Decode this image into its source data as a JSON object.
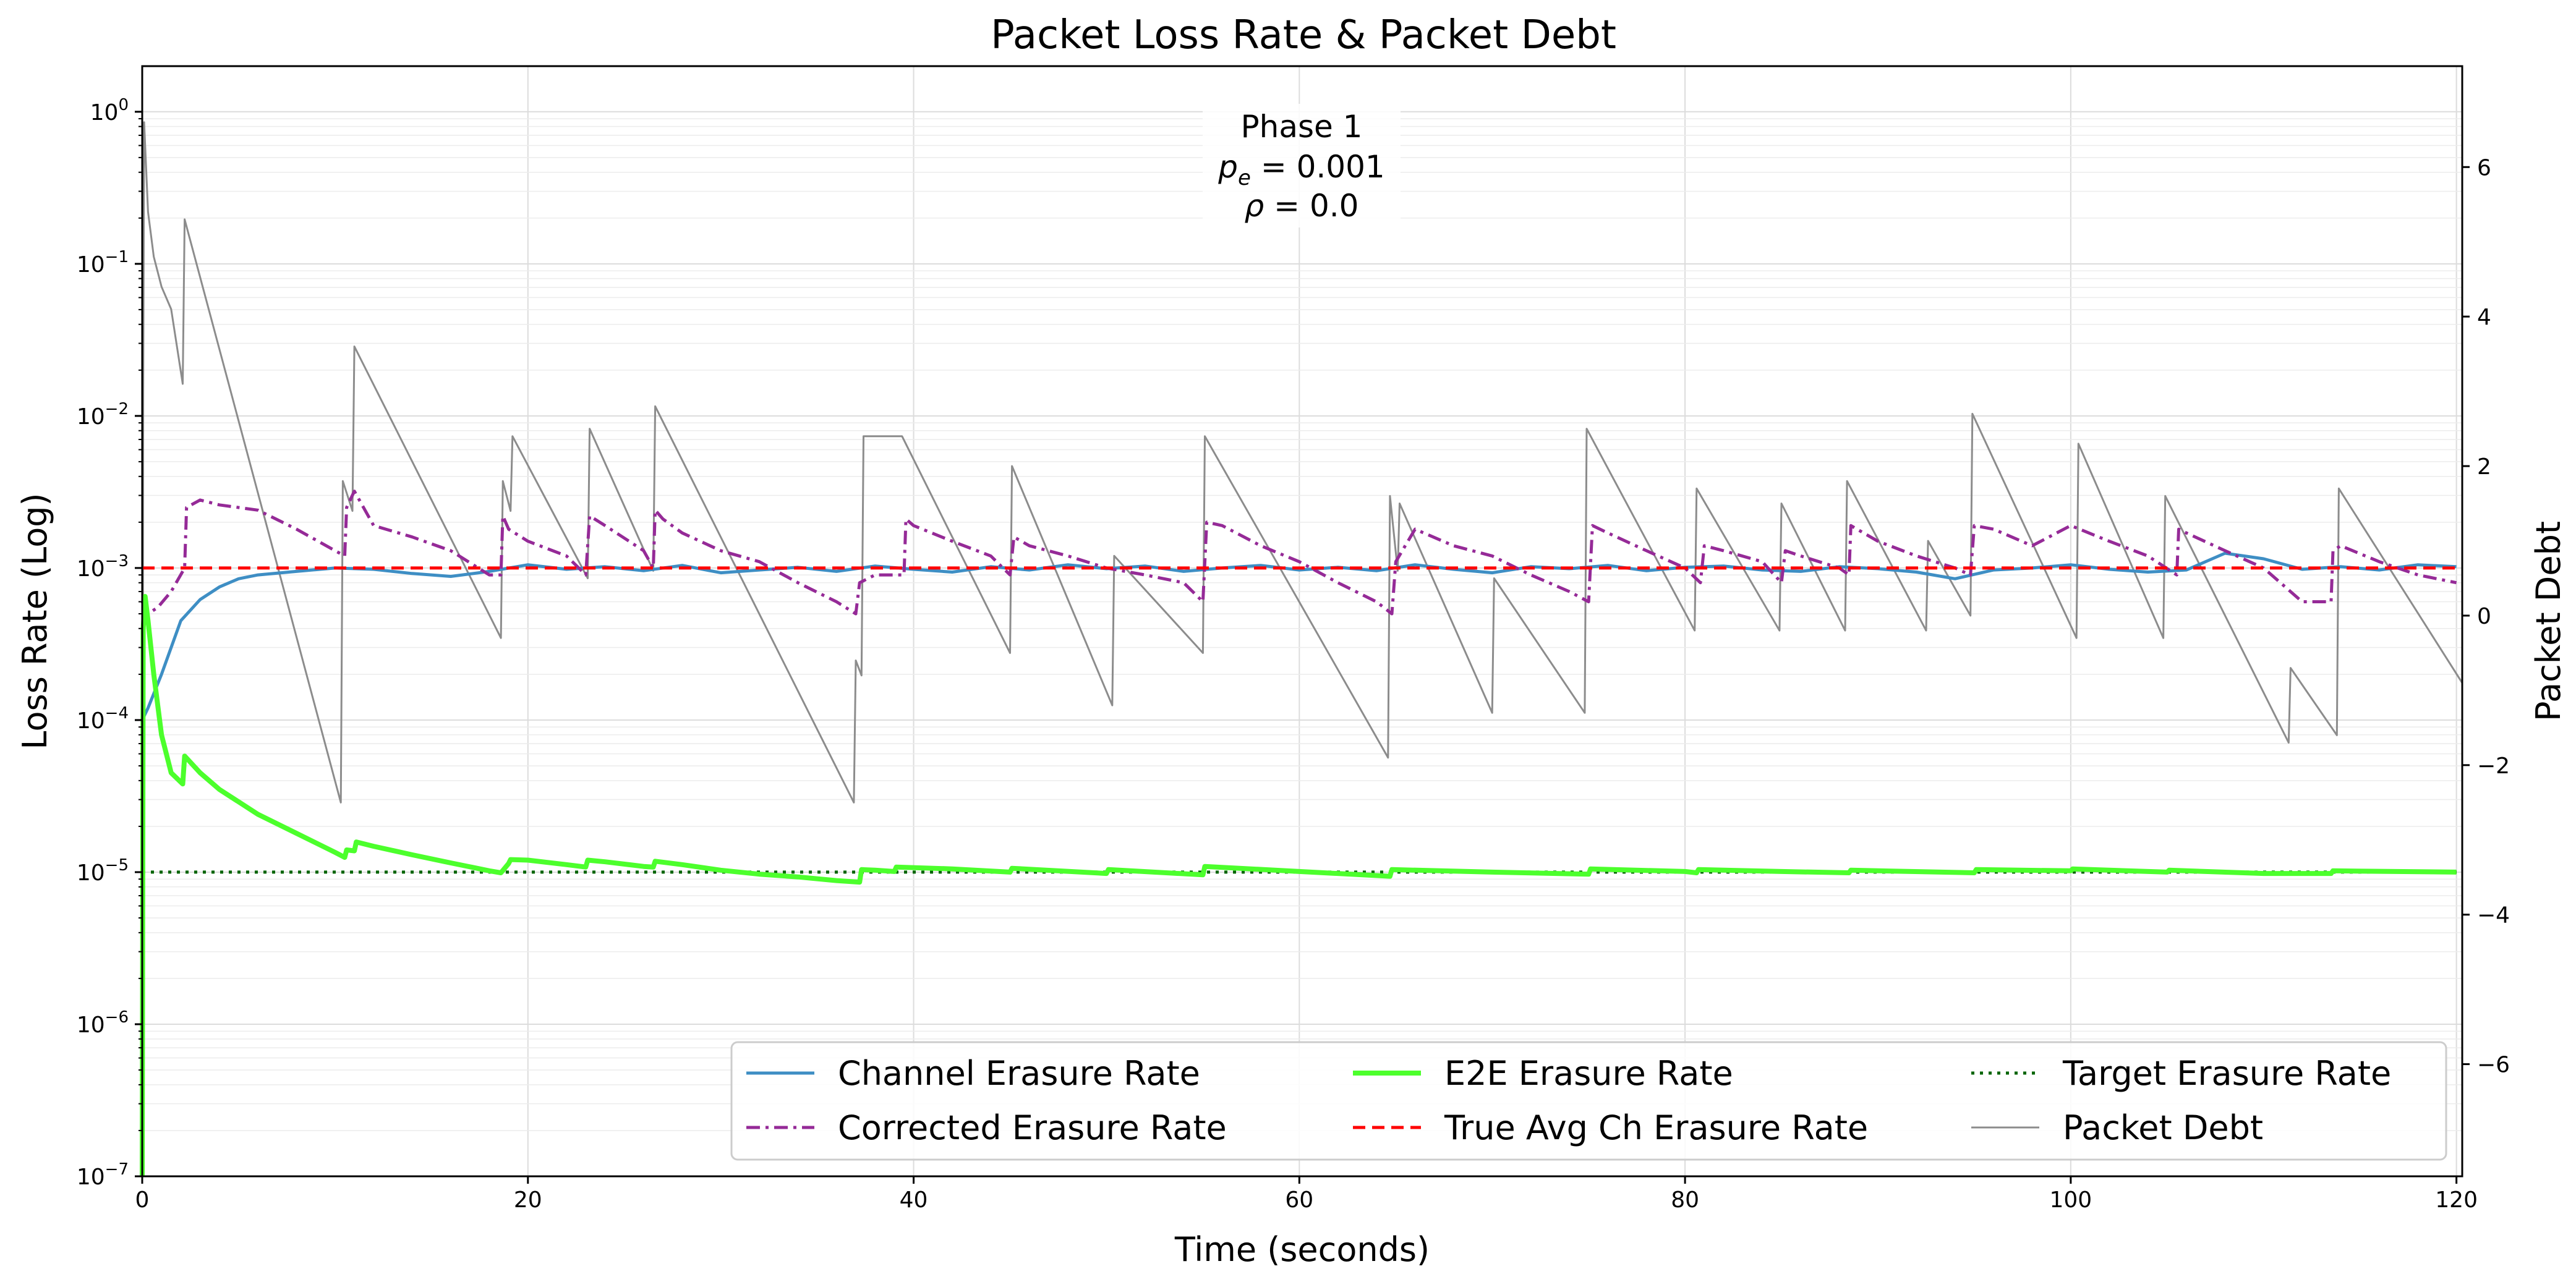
{
  "chart_data": {
    "type": "line",
    "title": "Packet Loss Rate & Packet Debt",
    "xlabel": "Time (seconds)",
    "ylabel_left": "Loss Rate (Log)",
    "ylabel_right": "Packet Debt",
    "xlim": [
      0,
      120.3
    ],
    "ylim_left_log": [
      -7,
      0.3
    ],
    "ylim_right": [
      -7.5,
      7.35
    ],
    "y_left_scale": "log",
    "grid": true,
    "legend_position": "lower-right",
    "x_ticks": [
      0,
      20,
      40,
      60,
      80,
      100,
      120
    ],
    "y_left_tick_exponents": [
      -7,
      -6,
      -5,
      -4,
      -3,
      -2,
      -1,
      0
    ],
    "y_left_tick_base": "10",
    "y_right_ticks": [
      -6,
      -4,
      -2,
      0,
      2,
      4,
      6
    ],
    "annotation": {
      "line1": "Phase 1",
      "p_sym": "p",
      "p_sub": "e",
      "p_val": " = 0.001",
      "rho_sym": "ρ",
      "rho_val": " = 0.0"
    },
    "series": [
      {
        "name": "Channel Erasure Rate",
        "axis": "left",
        "color": "#3e8ec4",
        "style": "solid",
        "x": [
          0,
          0.3,
          1,
          2,
          3,
          4,
          5,
          6,
          8,
          10,
          12,
          14,
          16,
          18,
          20,
          22,
          24,
          26,
          28,
          30,
          32,
          34,
          36,
          38,
          40,
          42,
          44,
          46,
          48,
          50,
          52,
          54,
          56,
          58,
          60,
          62,
          64,
          66,
          68,
          70,
          72,
          74,
          76,
          78,
          80,
          82,
          84,
          86,
          88,
          90,
          92,
          94,
          96,
          98,
          100,
          102,
          104,
          106,
          108,
          110,
          112,
          114,
          116,
          118,
          120
        ],
        "y": [
          0.0001,
          0.00012,
          0.0002,
          0.00045,
          0.00062,
          0.00075,
          0.00085,
          0.0009,
          0.00095,
          0.001,
          0.00098,
          0.00092,
          0.00088,
          0.00095,
          0.00105,
          0.00098,
          0.00102,
          0.00096,
          0.00104,
          0.00093,
          0.00097,
          0.00101,
          0.00095,
          0.00103,
          0.00098,
          0.00094,
          0.00102,
          0.00097,
          0.00105,
          0.00099,
          0.00103,
          0.00095,
          0.001,
          0.00104,
          0.00097,
          0.00101,
          0.00096,
          0.00105,
          0.00098,
          0.00093,
          0.00102,
          0.00099,
          0.00104,
          0.00096,
          0.00101,
          0.00103,
          0.00097,
          0.00095,
          0.00102,
          0.00099,
          0.00094,
          0.00085,
          0.00097,
          0.001,
          0.00105,
          0.00098,
          0.00094,
          0.00097,
          0.00125,
          0.00115,
          0.00098,
          0.00102,
          0.00097,
          0.00105,
          0.00102
        ]
      },
      {
        "name": "Corrected Erasure Rate",
        "axis": "left",
        "color": "#952a97",
        "style": "dashdot",
        "x": [
          0,
          0.3,
          0.8,
          1.5,
          2.2,
          2.3,
          3,
          4,
          6,
          8,
          10,
          10.5,
          10.6,
          11,
          12,
          14,
          16,
          18,
          18.6,
          18.7,
          19,
          20,
          22,
          23,
          23.2,
          24,
          26,
          26.5,
          26.6,
          27,
          28,
          30,
          32,
          34,
          36,
          37,
          37.2,
          38,
          39.5,
          39.6,
          40,
          42,
          44,
          45,
          45.2,
          46,
          48,
          50,
          52,
          54,
          55,
          55.2,
          56,
          58,
          60,
          62,
          64,
          64.8,
          65,
          66,
          68,
          70,
          72,
          74,
          75,
          75.2,
          76,
          78,
          80,
          80.8,
          81,
          82,
          84,
          85,
          85.2,
          86,
          88,
          88.5,
          88.6,
          90,
          92,
          94,
          94.8,
          95,
          96,
          98,
          100,
          102,
          104,
          105.5,
          105.6,
          106,
          108,
          110,
          112,
          113.5,
          113.6,
          114,
          116,
          118,
          120
        ],
        "y": [
          0.0006,
          0.0005,
          0.00055,
          0.0007,
          0.001,
          0.0025,
          0.0028,
          0.0026,
          0.0024,
          0.0018,
          0.0013,
          0.0012,
          0.0025,
          0.0032,
          0.0019,
          0.0016,
          0.0013,
          0.0009,
          0.0009,
          0.0022,
          0.0018,
          0.0015,
          0.0012,
          0.0009,
          0.0022,
          0.0019,
          0.0013,
          0.001,
          0.0024,
          0.0021,
          0.0017,
          0.0013,
          0.0011,
          0.0008,
          0.0006,
          0.0005,
          0.0008,
          0.0009,
          0.0009,
          0.0021,
          0.0019,
          0.0015,
          0.0012,
          0.0009,
          0.0016,
          0.0014,
          0.0012,
          0.001,
          0.0009,
          0.0008,
          0.0006,
          0.002,
          0.0019,
          0.0014,
          0.0011,
          0.0008,
          0.0006,
          0.0005,
          0.0011,
          0.0018,
          0.0014,
          0.0012,
          0.0009,
          0.0007,
          0.0006,
          0.0019,
          0.0017,
          0.0013,
          0.001,
          0.0008,
          0.0014,
          0.0013,
          0.0011,
          0.0008,
          0.0013,
          0.0012,
          0.001,
          0.0009,
          0.0019,
          0.0015,
          0.0012,
          0.001,
          0.0009,
          0.0019,
          0.0018,
          0.0014,
          0.0019,
          0.0015,
          0.0012,
          0.0009,
          0.0018,
          0.0017,
          0.0013,
          0.001,
          0.0006,
          0.0006,
          0.0013,
          0.0014,
          0.0011,
          0.0009,
          0.0008
        ]
      },
      {
        "name": "E2E Erasure Rate",
        "axis": "left",
        "color": "#4cff2c",
        "style": "solid-thick",
        "x": [
          0,
          0.05,
          0.15,
          0.3,
          0.6,
          1,
          1.5,
          2.1,
          2.2,
          3,
          4,
          6,
          8,
          10,
          10.5,
          10.6,
          11,
          11.1,
          12,
          14,
          16,
          18,
          18.6,
          19,
          19.1,
          20,
          22,
          23,
          23.1,
          24,
          26,
          26.5,
          26.6,
          28,
          30,
          32,
          34,
          36,
          37.2,
          37.3,
          38,
          39,
          39.1,
          42,
          45,
          45.1,
          50,
          50.1,
          55,
          55.1,
          60,
          64.7,
          64.8,
          70,
          75,
          75.1,
          80,
          80.6,
          80.7,
          85,
          88.5,
          88.6,
          95,
          95.1,
          100,
          100.1,
          105,
          105.1,
          110,
          113.5,
          113.6,
          120
        ],
        "y": [
          1e-07,
          0.0004,
          0.00065,
          0.00045,
          0.0002,
          8e-05,
          4.5e-05,
          3.8e-05,
          5.8e-05,
          4.5e-05,
          3.5e-05,
          2.4e-05,
          1.8e-05,
          1.35e-05,
          1.25e-05,
          1.4e-05,
          1.38e-05,
          1.58e-05,
          1.48e-05,
          1.3e-05,
          1.15e-05,
          1.02e-05,
          9.9e-06,
          1.14e-05,
          1.21e-05,
          1.2e-05,
          1.12e-05,
          1.08e-05,
          1.2e-05,
          1.17e-05,
          1.09e-05,
          1.08e-05,
          1.18e-05,
          1.12e-05,
          1.03e-05,
          9.7e-06,
          9.3e-06,
          8.8e-06,
          8.6e-06,
          1.04e-05,
          1.03e-05,
          1.01e-05,
          1.08e-05,
          1.05e-05,
          1e-05,
          1.06e-05,
          9.8e-06,
          1.04e-05,
          9.6e-06,
          1.09e-05,
          1.01e-05,
          9.4e-06,
          1.04e-05,
          1e-05,
          9.7e-06,
          1.05e-05,
          1.01e-05,
          9.9e-06,
          1.04e-05,
          1.01e-05,
          9.9e-06,
          1.03e-05,
          9.9e-06,
          1.04e-05,
          1.02e-05,
          1.05e-05,
          1e-05,
          1.03e-05,
          9.8e-06,
          9.8e-06,
          1.02e-05,
          1e-05
        ]
      },
      {
        "name": "True Avg Ch Erasure Rate",
        "axis": "left",
        "color": "#ff0000",
        "style": "dashed",
        "x": [
          0,
          120.3
        ],
        "y": [
          0.001,
          0.001
        ]
      },
      {
        "name": "Target Erasure Rate",
        "axis": "left",
        "color": "#006400",
        "style": "dotted",
        "x": [
          0,
          120.3
        ],
        "y": [
          1e-05,
          1e-05
        ]
      },
      {
        "name": "Packet Debt",
        "axis": "right",
        "color": "#8c8c8c",
        "style": "solid-thin",
        "x": [
          0,
          0.05,
          0.1,
          0.3,
          0.6,
          1,
          1.5,
          2.1,
          2.2,
          10.3,
          10.4,
          10.9,
          11,
          18.6,
          18.7,
          19.1,
          19.2,
          23.1,
          23.2,
          26.5,
          26.6,
          36.9,
          37.0,
          37.3,
          37.4,
          39.3,
          39.4,
          45.0,
          45.1,
          50.3,
          50.4,
          55.0,
          55.1,
          64.6,
          64.7,
          65.1,
          65.2,
          70.0,
          70.1,
          74.8,
          74.9,
          80.5,
          80.6,
          84.9,
          85.0,
          88.3,
          88.4,
          92.5,
          92.6,
          94.8,
          94.9,
          100.3,
          100.4,
          104.8,
          104.9,
          111.3,
          111.4,
          113.8,
          113.9,
          120.3
        ],
        "y": [
          -7.3,
          3,
          6.6,
          5.4,
          4.8,
          4.4,
          4.1,
          3.1,
          5.3,
          -2.5,
          1.8,
          1.4,
          3.6,
          -0.3,
          1.8,
          1.4,
          2.4,
          0.5,
          2.5,
          0.6,
          2.8,
          -2.5,
          -0.6,
          -0.8,
          2.4,
          2.4,
          2.4,
          -0.5,
          2.0,
          -1.2,
          0.8,
          -0.5,
          2.4,
          -1.9,
          1.6,
          0.6,
          1.5,
          -1.3,
          0.5,
          -1.3,
          2.5,
          -0.2,
          1.7,
          -0.2,
          1.5,
          -0.2,
          1.8,
          -0.2,
          1.0,
          0.0,
          2.7,
          -0.3,
          2.3,
          -0.3,
          1.6,
          -1.7,
          -0.7,
          -1.6,
          1.7,
          -0.9
        ]
      }
    ]
  }
}
